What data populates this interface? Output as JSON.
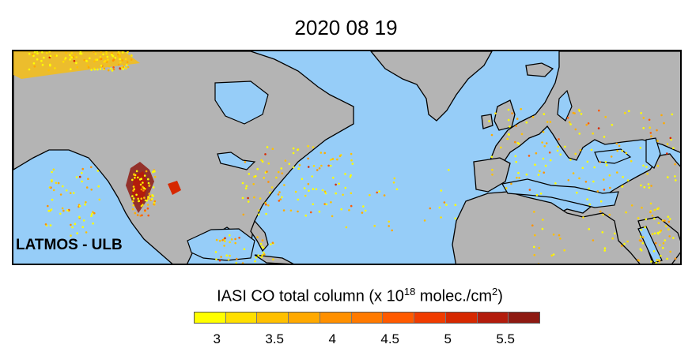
{
  "title": "2020 08 19",
  "watermark": "LATMOS - ULB",
  "colorbar": {
    "label_prefix": "IASI CO total column (x 10",
    "label_exponent": "18",
    "label_middle": " molec./cm",
    "label_sup2": "2",
    "label_suffix": ")",
    "ticks": [
      "3",
      "3.5",
      "4",
      "4.5",
      "5",
      "5.5"
    ],
    "tick_values": [
      3,
      3.5,
      4,
      4.5,
      5,
      5.5
    ],
    "range": [
      2.8,
      5.8
    ],
    "colors": [
      "#ffff00",
      "#ffdf00",
      "#ffc000",
      "#ffa900",
      "#ff9000",
      "#ff7a00",
      "#ff5a00",
      "#f03c00",
      "#d62800",
      "#b31c0c",
      "#8e1a12"
    ]
  },
  "map": {
    "ocean_color": "#96cdf8",
    "land_color": "#b4b4b4",
    "coast_color": "#000000"
  }
}
